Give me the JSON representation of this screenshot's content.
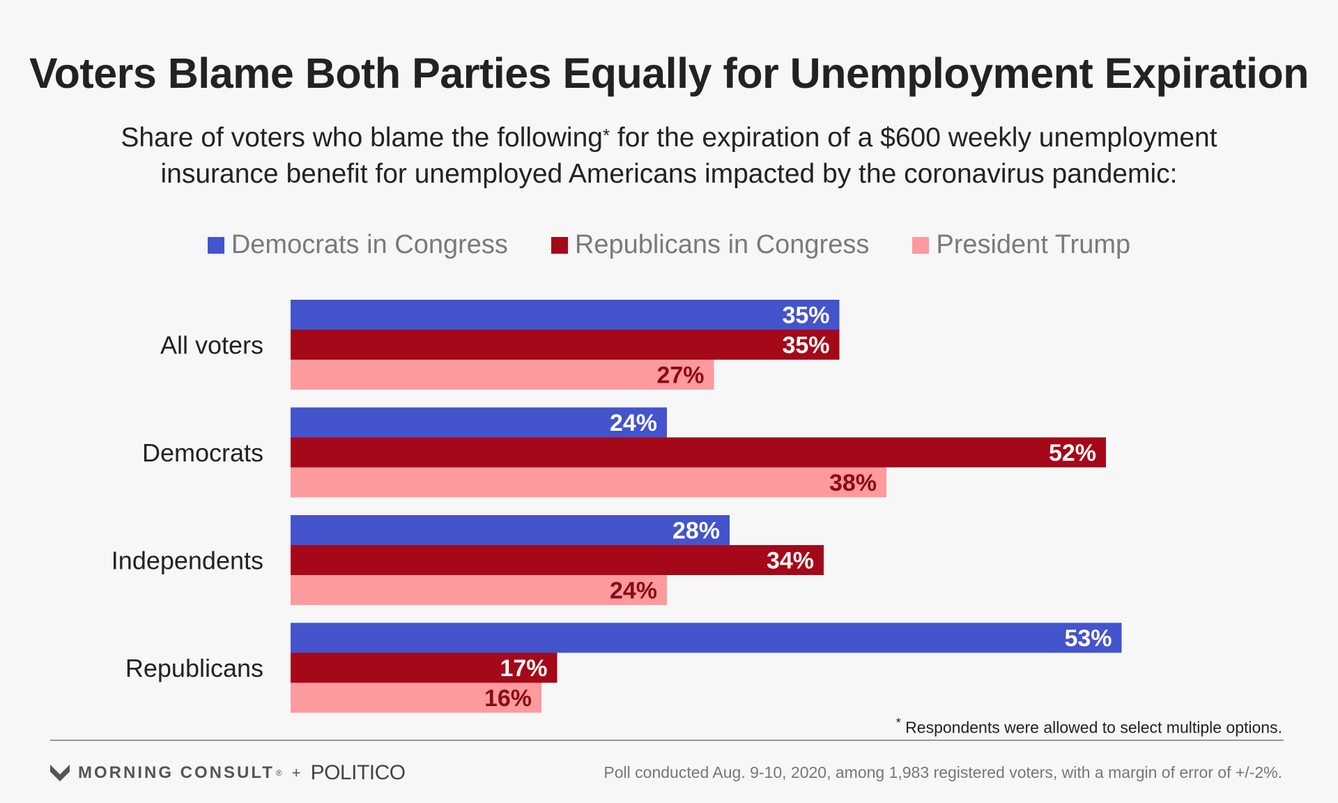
{
  "title": "Voters Blame Both Parties Equally for Unemployment Expiration",
  "subtitle_part1": "Share of voters who blame the following",
  "subtitle_asterisk": "*",
  "subtitle_part2": " for the expiration of a $600 weekly unemployment insurance benefit for unemployed Americans impacted by the coronavirus pandemic:",
  "footnote_asterisk": "*",
  "footnote_text": " Respondents were allowed to select multiple options.",
  "brand": {
    "morning_consult": "MORNING CONSULT",
    "registered_mark": "®",
    "plus": "+",
    "politico": "POLITICO"
  },
  "source": "Poll conducted Aug. 9-10, 2020, among 1,983 registered voters, with a margin of error of +/-2%.",
  "colors": {
    "democrats": "#4354cc",
    "republicans": "#a50818",
    "trump": "#fc9a9e",
    "label_light": "#ffffff",
    "label_dark": "#8b0a15"
  },
  "chart_data": {
    "type": "bar",
    "orientation": "horizontal",
    "title": "Voters Blame Both Parties Equally for Unemployment Expiration",
    "categories": [
      "All voters",
      "Democrats",
      "Independents",
      "Republicans"
    ],
    "series": [
      {
        "name": "Democrats in Congress",
        "values": [
          35,
          24,
          28,
          53
        ],
        "color": "#4354cc",
        "label_color": "#ffffff"
      },
      {
        "name": "Republicans in Congress",
        "values": [
          35,
          52,
          34,
          17
        ],
        "color": "#a50818",
        "label_color": "#ffffff"
      },
      {
        "name": "President Trump",
        "values": [
          27,
          38,
          24,
          16
        ],
        "color": "#fc9a9e",
        "label_color": "#8b0a15"
      }
    ],
    "value_suffix": "%",
    "xlim": [
      0,
      100
    ],
    "grid": false,
    "legend": "top"
  }
}
